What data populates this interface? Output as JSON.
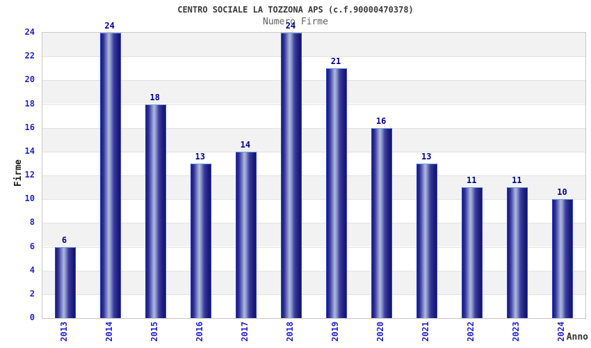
{
  "chart_data": {
    "type": "bar",
    "title": "CENTRO SOCIALE LA TOZZONA APS (c.f.90000470378)",
    "subtitle": "Numero Firme",
    "xlabel": "Anno",
    "ylabel": "Firme",
    "categories": [
      "2013",
      "2014",
      "2015",
      "2016",
      "2017",
      "2018",
      "2019",
      "2020",
      "2021",
      "2022",
      "2023",
      "2024"
    ],
    "values": [
      6,
      24,
      18,
      13,
      14,
      24,
      21,
      16,
      13,
      11,
      11,
      10
    ],
    "ylim": [
      0,
      24
    ],
    "ytick_step": 2,
    "legend": "none",
    "grid": "horizontal alternating bands",
    "colors": {
      "bar_dark": "#191970",
      "bar_mid": "#32329d",
      "bar_highlight": "#b0badd",
      "bar_edge": "#2d3fd0",
      "bar_top_edge": "#6f9fe0",
      "tick_label": "#2222cc",
      "data_label": "#00008b",
      "band_gray": "#f2f2f2",
      "band_white": "#ffffff",
      "plot_border": "#c8c8c8",
      "title_color": "#3a3a3a",
      "subtitle_color": "#606060"
    }
  }
}
